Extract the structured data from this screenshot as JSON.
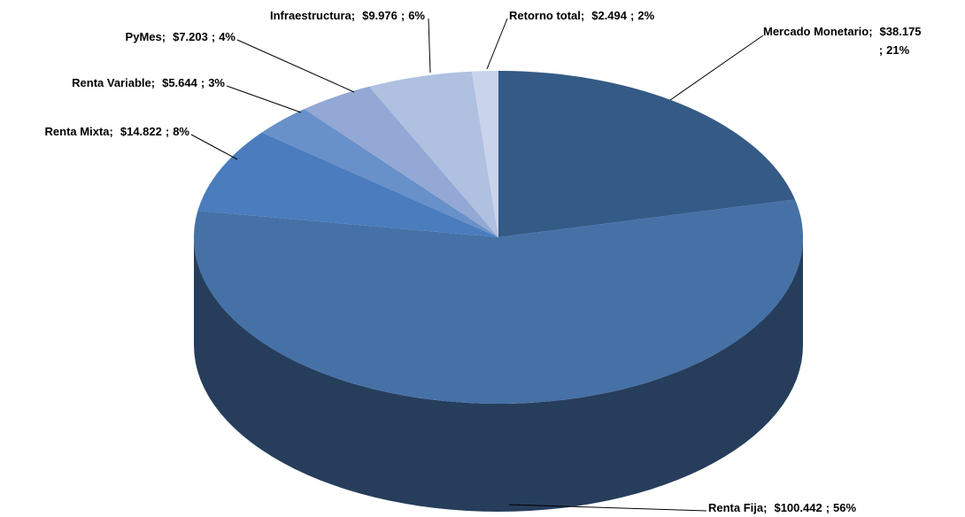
{
  "chart_data": {
    "type": "pie",
    "three_d": true,
    "categories": [
      "Mercado Monetario",
      "Renta Fija",
      "Renta Mixta",
      "Renta Variable",
      "PyMes",
      "Infraestructura",
      "Retorno total"
    ],
    "values": [
      38.175,
      100.442,
      14.822,
      5.644,
      7.203,
      9.976,
      2.494
    ],
    "value_labels": [
      "$38.175",
      "$100.442",
      "$14.822",
      "$5.644",
      "$7.203",
      "$9.976",
      "$2.494"
    ],
    "percents": [
      21,
      56,
      8,
      3,
      4,
      6,
      2
    ],
    "percent_labels": [
      "21%",
      "56%",
      "8%",
      "3%",
      "4%",
      "6%",
      "2%"
    ],
    "separator": ";",
    "colors": [
      "#345a86",
      "#4571a7",
      "#4a7cbe",
      "#6890c9",
      "#93a8d4",
      "#afc0e1",
      "#c9d4eb"
    ]
  }
}
